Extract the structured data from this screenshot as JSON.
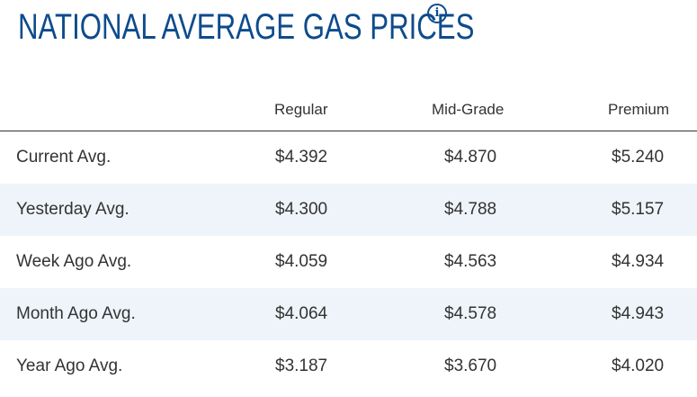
{
  "header": {
    "title": "NATIONAL AVERAGE GAS PRICES",
    "info_icon": "info-icon"
  },
  "table": {
    "columns": [
      "Regular",
      "Mid-Grade",
      "Premium"
    ],
    "rows": [
      {
        "label": "Current Avg.",
        "regular": "$4.392",
        "mid_grade": "$4.870",
        "premium": "$5.240"
      },
      {
        "label": "Yesterday Avg.",
        "regular": "$4.300",
        "mid_grade": "$4.788",
        "premium": "$5.157"
      },
      {
        "label": "Week Ago Avg.",
        "regular": "$4.059",
        "mid_grade": "$4.563",
        "premium": "$4.934"
      },
      {
        "label": "Month Ago Avg.",
        "regular": "$4.064",
        "mid_grade": "$4.578",
        "premium": "$4.943"
      },
      {
        "label": "Year Ago Avg.",
        "regular": "$3.187",
        "mid_grade": "$3.670",
        "premium": "$4.020"
      }
    ]
  },
  "colors": {
    "title": "#0d4b8c",
    "text": "#333333",
    "alt_row": "#eef4f9"
  }
}
